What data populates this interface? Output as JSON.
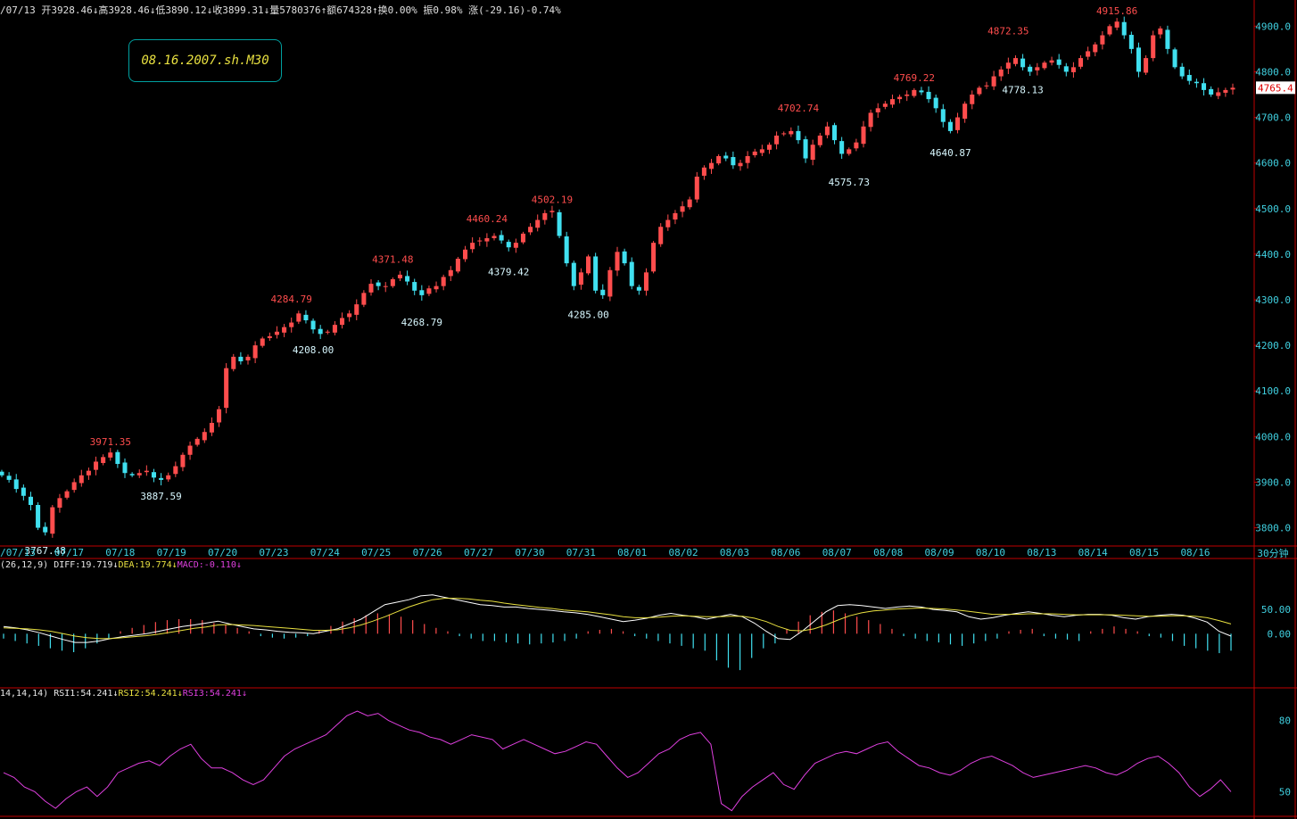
{
  "header": {
    "info_line": "/07/13 开3928.46↓高3928.46↓低3890.12↓收3899.31↓量5780376↑额674328↑换0.00% 振0.98% 涨(-29.16)-0.74%",
    "badge": "08.16.2007.sh.M30",
    "period_label": "30分钟"
  },
  "macd_title": {
    "params": "(26,12,9)",
    "diff": "DIFF:19.719↓",
    "dea": "DEA:19.774↓",
    "macd": "MACD:-0.110↓"
  },
  "rsi_title": {
    "params": "14,14,14)",
    "rsi1": "RSI1:54.241↓",
    "rsi2": "RSI2:54.241↓",
    "rsi3": "RSI3:54.241↓"
  },
  "colors": {
    "up": "#ff4d4d",
    "down": "#40e0f0",
    "frame": "#c00000",
    "grid_text": "#40d0e0",
    "diff": "#ffffff",
    "dea": "#e8e040",
    "rsi": "#e040e0"
  },
  "chart_data": [
    {
      "type": "candlestick",
      "ylim": [
        3760,
        4930
      ],
      "yticks": [
        3800,
        3900,
        4000,
        4100,
        4200,
        4300,
        4400,
        4500,
        4600,
        4700,
        4800,
        4900
      ],
      "ytick_labels": [
        "3800.0",
        "3900.0",
        "4000.0",
        "4100.0",
        "4200.0",
        "4300.0",
        "4400.0",
        "4500.0",
        "4600.0",
        "4700.0",
        "4800.0",
        "4900.0"
      ],
      "xlabels": [
        "/07/13",
        "07/17",
        "07/18",
        "07/19",
        "07/20",
        "07/23",
        "07/24",
        "07/25",
        "07/26",
        "07/27",
        "07/30",
        "07/31",
        "08/01",
        "08/02",
        "08/03",
        "08/06",
        "08/07",
        "08/08",
        "08/09",
        "08/10",
        "08/13",
        "08/14",
        "08/15",
        "08/16"
      ],
      "current_price_label": "4765.4",
      "close_path": [
        3915,
        3905,
        3885,
        3870,
        3850,
        3800,
        3790,
        3845,
        3865,
        3880,
        3900,
        3915,
        3925,
        3945,
        3955,
        3965,
        3940,
        3920,
        3915,
        3920,
        3925,
        3910,
        3905,
        3915,
        3935,
        3960,
        3980,
        3995,
        4010,
        4030,
        4060,
        4150,
        4175,
        4165,
        4175,
        4200,
        4215,
        4220,
        4230,
        4240,
        4250,
        4270,
        4255,
        4235,
        4225,
        4230,
        4245,
        4260,
        4270,
        4290,
        4315,
        4335,
        4330,
        4330,
        4345,
        4355,
        4340,
        4320,
        4310,
        4325,
        4330,
        4350,
        4365,
        4390,
        4410,
        4425,
        4430,
        4435,
        4440,
        4430,
        4415,
        4425,
        4445,
        4460,
        4475,
        4490,
        4495,
        4440,
        4380,
        4330,
        4360,
        4395,
        4320,
        4310,
        4365,
        4405,
        4380,
        4330,
        4320,
        4360,
        4425,
        4460,
        4475,
        4490,
        4505,
        4520,
        4570,
        4590,
        4600,
        4615,
        4610,
        4595,
        4600,
        4615,
        4625,
        4630,
        4640,
        4660,
        4665,
        4670,
        4650,
        4610,
        4640,
        4660,
        4680,
        4650,
        4620,
        4630,
        4645,
        4680,
        4710,
        4720,
        4730,
        4740,
        4745,
        4750,
        4760,
        4755,
        4740,
        4720,
        4690,
        4670,
        4700,
        4730,
        4750,
        4765,
        4770,
        4790,
        4805,
        4820,
        4830,
        4810,
        4800,
        4810,
        4820,
        4825,
        4815,
        4800,
        4810,
        4830,
        4845,
        4860,
        4880,
        4900,
        4910,
        4880,
        4850,
        4800,
        4830,
        4880,
        4895,
        4850,
        4810,
        4790,
        4780,
        4775,
        4760,
        4750,
        4755,
        4760,
        4765
      ],
      "annotations": [
        {
          "label": "3767.48",
          "type": "low",
          "candle": 6,
          "value": 3767.48
        },
        {
          "label": "3971.35",
          "type": "high",
          "candle": 15,
          "value": 3971.35
        },
        {
          "label": "3887.59",
          "type": "low",
          "candle": 22,
          "value": 3887.59
        },
        {
          "label": "4284.79",
          "type": "high",
          "candle": 40,
          "value": 4284.79
        },
        {
          "label": "4208.00",
          "type": "low",
          "candle": 43,
          "value": 4208.0
        },
        {
          "label": "4371.48",
          "type": "high",
          "candle": 54,
          "value": 4371.48
        },
        {
          "label": "4268.79",
          "type": "low",
          "candle": 58,
          "value": 4268.79
        },
        {
          "label": "4460.24",
          "type": "high",
          "candle": 67,
          "value": 4460.24
        },
        {
          "label": "4379.42",
          "type": "low",
          "candle": 70,
          "value": 4379.42
        },
        {
          "label": "4502.19",
          "type": "high",
          "candle": 76,
          "value": 4502.19
        },
        {
          "label": "4285.00",
          "type": "low",
          "candle": 81,
          "value": 4285.0
        },
        {
          "label": "4702.74",
          "type": "high",
          "candle": 110,
          "value": 4702.74
        },
        {
          "label": "4575.73",
          "type": "low",
          "candle": 117,
          "value": 4575.73
        },
        {
          "label": "4769.22",
          "type": "high",
          "candle": 126,
          "value": 4769.22
        },
        {
          "label": "4640.87",
          "type": "low",
          "candle": 131,
          "value": 4640.87
        },
        {
          "label": "4872.35",
          "type": "high",
          "candle": 139,
          "value": 4872.35
        },
        {
          "label": "4778.13",
          "type": "low",
          "candle": 141,
          "value": 4778.13
        },
        {
          "label": "4915.86",
          "type": "high",
          "candle": 154,
          "value": 4915.86
        }
      ]
    },
    {
      "type": "macd",
      "ylim": [
        -95,
        155
      ],
      "yticks": [
        0,
        50
      ],
      "ytick_labels": [
        "0.00",
        "50.00"
      ],
      "diff": [
        15,
        12,
        8,
        2,
        -5,
        -12,
        -18,
        -18,
        -15,
        -10,
        -6,
        -3,
        0,
        5,
        10,
        15,
        18,
        22,
        26,
        20,
        15,
        10,
        8,
        5,
        3,
        2,
        0,
        5,
        10,
        20,
        30,
        45,
        60,
        65,
        70,
        78,
        80,
        75,
        70,
        65,
        60,
        58,
        55,
        55,
        52,
        50,
        48,
        45,
        43,
        40,
        35,
        30,
        25,
        28,
        32,
        38,
        42,
        38,
        35,
        30,
        35,
        40,
        35,
        22,
        5,
        -10,
        -12,
        5,
        25,
        45,
        58,
        60,
        58,
        55,
        52,
        55,
        57,
        55,
        50,
        48,
        45,
        35,
        30,
        33,
        38,
        42,
        45,
        42,
        38,
        35,
        38,
        40,
        40,
        38,
        33,
        30,
        35,
        38,
        40,
        38,
        32,
        24,
        5,
        -5
      ],
      "dea": [
        12,
        11,
        10,
        8,
        5,
        0,
        -5,
        -8,
        -10,
        -10,
        -8,
        -6,
        -4,
        -1,
        3,
        7,
        11,
        14,
        18,
        19,
        18,
        17,
        15,
        13,
        11,
        9,
        7,
        7,
        8,
        12,
        18,
        26,
        35,
        45,
        55,
        63,
        70,
        73,
        73,
        72,
        69,
        67,
        63,
        60,
        57,
        54,
        52,
        49,
        47,
        45,
        42,
        39,
        35,
        33,
        33,
        34,
        36,
        37,
        36,
        35,
        35,
        36,
        36,
        32,
        25,
        15,
        7,
        6,
        10,
        18,
        28,
        37,
        43,
        47,
        49,
        51,
        52,
        53,
        52,
        51,
        49,
        46,
        43,
        40,
        40,
        40,
        41,
        41,
        41,
        40,
        39,
        39,
        39,
        39,
        38,
        37,
        36,
        36,
        37,
        37,
        36,
        33,
        27,
        20
      ],
      "histogram": [
        -10,
        -15,
        -20,
        -25,
        -30,
        -35,
        -38,
        -30,
        -20,
        -10,
        5,
        12,
        18,
        24,
        28,
        30,
        30,
        28,
        22,
        18,
        12,
        5,
        -5,
        -8,
        -10,
        -8,
        -5,
        8,
        16,
        25,
        32,
        38,
        42,
        40,
        35,
        28,
        20,
        12,
        5,
        -5,
        -10,
        -15,
        -15,
        -18,
        -20,
        -22,
        -20,
        -18,
        -15,
        -10,
        5,
        8,
        10,
        5,
        -5,
        -10,
        -15,
        -20,
        -25,
        -30,
        -35,
        -55,
        -70,
        -75,
        -50,
        -30,
        -20,
        10,
        25,
        38,
        45,
        48,
        42,
        35,
        28,
        20,
        10,
        -5,
        -10,
        -15,
        -18,
        -22,
        -25,
        -20,
        -15,
        -10,
        5,
        8,
        10,
        -5,
        -10,
        -12,
        -15,
        5,
        10,
        15,
        10,
        5,
        -5,
        -8,
        -15,
        -25,
        -30,
        -35,
        -40,
        -35
      ]
    },
    {
      "type": "line",
      "name": "RSI",
      "ylim": [
        40,
        90
      ],
      "yticks": [
        50,
        80
      ],
      "ytick_labels": [
        "50",
        "80"
      ],
      "values": [
        58,
        56,
        52,
        50,
        46,
        43,
        47,
        50,
        52,
        48,
        52,
        58,
        60,
        62,
        63,
        61,
        65,
        68,
        70,
        64,
        60,
        60,
        58,
        55,
        53,
        55,
        60,
        65,
        68,
        70,
        72,
        74,
        78,
        82,
        84,
        82,
        83,
        80,
        78,
        76,
        75,
        73,
        72,
        70,
        72,
        74,
        73,
        72,
        68,
        70,
        72,
        70,
        68,
        66,
        67,
        69,
        71,
        70,
        65,
        60,
        56,
        58,
        62,
        66,
        68,
        72,
        74,
        75,
        70,
        45,
        42,
        48,
        52,
        55,
        58,
        53,
        51,
        57,
        62,
        64,
        66,
        67,
        66,
        68,
        70,
        71,
        67,
        64,
        61,
        60,
        58,
        57,
        59,
        62,
        64,
        65,
        63,
        61,
        58,
        56,
        57,
        58,
        59,
        60,
        61,
        60,
        58,
        57,
        59,
        62,
        64,
        65,
        62,
        58,
        52,
        48,
        51,
        55,
        50
      ]
    }
  ]
}
